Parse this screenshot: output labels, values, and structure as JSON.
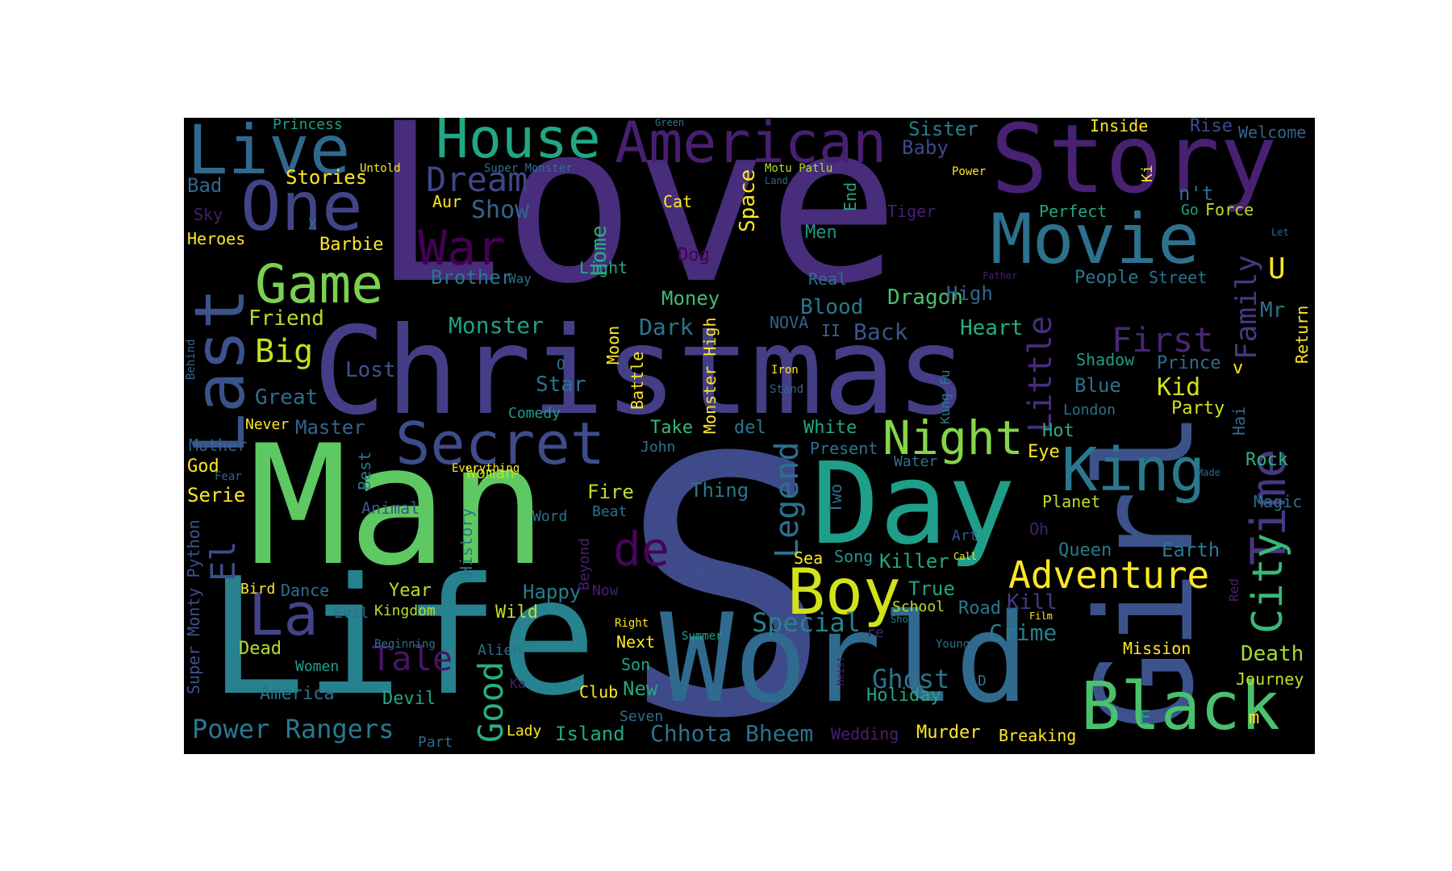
{
  "words": [
    {
      "text": "Love",
      "color": "#472d7b"
    },
    {
      "text": "S",
      "color": "#3e4a89"
    },
    {
      "text": "Man",
      "color": "#5ec962"
    },
    {
      "text": "Life",
      "color": "#26828e"
    },
    {
      "text": "Christmas",
      "color": "#433e85"
    },
    {
      "text": "World",
      "color": "#306a8e"
    },
    {
      "text": "Girl",
      "color": "#3b528b"
    },
    {
      "text": "Day",
      "color": "#1f9e89"
    },
    {
      "text": "Story",
      "color": "#482173"
    },
    {
      "text": "Movie",
      "color": "#2c728e"
    },
    {
      "text": "Black",
      "color": "#4ac16d"
    },
    {
      "text": "Boy",
      "color": "#d2e21b"
    },
    {
      "text": "Live",
      "color": "#31688e"
    },
    {
      "text": "Secret",
      "color": "#3e4c8a"
    },
    {
      "text": "American",
      "color": "#481f70"
    },
    {
      "text": "House",
      "color": "#22a785"
    },
    {
      "text": "One",
      "color": "#414487"
    },
    {
      "text": "Last",
      "color": "#3b528b"
    },
    {
      "text": "Game",
      "color": "#7ad151"
    },
    {
      "text": "Night",
      "color": "#86d549"
    },
    {
      "text": "King",
      "color": "#2a788e"
    },
    {
      "text": "Time",
      "color": "#453882"
    },
    {
      "text": "City",
      "color": "#38b977"
    },
    {
      "text": "Adventure",
      "color": "#fde725"
    },
    {
      "text": "La",
      "color": "#414487"
    },
    {
      "text": "War",
      "color": "#440154"
    },
    {
      "text": "Dream",
      "color": "#3f4788"
    },
    {
      "text": "First",
      "color": "#482677"
    },
    {
      "text": "Little",
      "color": "#472d7b"
    },
    {
      "text": "Family",
      "color": "#443983"
    },
    {
      "text": "de",
      "color": "#450559"
    },
    {
      "text": "Good",
      "color": "#29af7f"
    },
    {
      "text": "Tale",
      "color": "#481467"
    },
    {
      "text": "Legend",
      "color": "#2d708e"
    },
    {
      "text": "El",
      "color": "#3d4e8a"
    },
    {
      "text": "Big",
      "color": "#c2df23"
    },
    {
      "text": "Death",
      "color": "#a5db36"
    },
    {
      "text": "Ghost",
      "color": "#2c728e"
    },
    {
      "text": "Power Rangers",
      "color": "#2a788e"
    },
    {
      "text": "Chhota Bheem",
      "color": "#2c738e"
    },
    {
      "text": "Special",
      "color": "#25848e"
    },
    {
      "text": "Crime",
      "color": "#277f8e"
    },
    {
      "text": "Monster",
      "color": "#1fa088"
    },
    {
      "text": "Dragon",
      "color": "#4ac16d"
    },
    {
      "text": "Kid",
      "color": "#d0e11c"
    },
    {
      "text": "Back",
      "color": "#39558c"
    },
    {
      "text": "Show",
      "color": "#33638d"
    },
    {
      "text": "Dark",
      "color": "#2c738e"
    },
    {
      "text": "Brother",
      "color": "#2a768e"
    },
    {
      "text": "Friend",
      "color": "#b5de2b"
    },
    {
      "text": "Lost",
      "color": "#39568c"
    },
    {
      "text": "Great",
      "color": "#2e6e8e"
    },
    {
      "text": "Heart",
      "color": "#29af7f"
    },
    {
      "text": "Blood",
      "color": "#2a788e"
    },
    {
      "text": "Home",
      "color": "#2ab07f"
    },
    {
      "text": "Space",
      "color": "#fde725"
    },
    {
      "text": "Sister",
      "color": "#287d8e"
    },
    {
      "text": "Baby",
      "color": "#3e4989"
    },
    {
      "text": "Stories",
      "color": "#fde725"
    },
    {
      "text": "Bad",
      "color": "#31688e"
    },
    {
      "text": "Barbie",
      "color": "#fde725"
    },
    {
      "text": "Heroes",
      "color": "#fde725"
    },
    {
      "text": "Princess",
      "color": "#1fa088"
    },
    {
      "text": "Inside",
      "color": "#fde725"
    },
    {
      "text": "Rise",
      "color": "#3e4a89"
    },
    {
      "text": "Welcome",
      "color": "#33638d"
    },
    {
      "text": "Perfect",
      "color": "#22a785"
    },
    {
      "text": "Go",
      "color": "#20a486"
    },
    {
      "text": "Force",
      "color": "#b8de29"
    },
    {
      "text": "n't",
      "color": "#2d708e"
    },
    {
      "text": "U",
      "color": "#fde725"
    },
    {
      "text": "Mr",
      "color": "#2d708e"
    },
    {
      "text": "Return",
      "color": "#fde725"
    },
    {
      "text": "People",
      "color": "#2a788e"
    },
    {
      "text": "Street",
      "color": "#2c728e"
    },
    {
      "text": "High",
      "color": "#31688e"
    },
    {
      "text": "Men",
      "color": "#1f968b"
    },
    {
      "text": "Real",
      "color": "#2c728e"
    },
    {
      "text": "Tiger",
      "color": "#481f70"
    },
    {
      "text": "Dog",
      "color": "#440154"
    },
    {
      "text": "Light",
      "color": "#22a785"
    },
    {
      "text": "Money",
      "color": "#3fbc73"
    },
    {
      "text": "Cat",
      "color": "#fde725"
    },
    {
      "text": "Aur",
      "color": "#fde725"
    },
    {
      "text": "End",
      "color": "#20a486"
    },
    {
      "text": "Ki",
      "color": "#fde725"
    },
    {
      "text": "Shadow",
      "color": "#1f9e89"
    },
    {
      "text": "Prince",
      "color": "#2e6e8e"
    },
    {
      "text": "Blue",
      "color": "#2d708e"
    },
    {
      "text": "Party",
      "color": "#d2e21b"
    },
    {
      "text": "Hai",
      "color": "#31688e"
    },
    {
      "text": "London",
      "color": "#2d708e"
    },
    {
      "text": "Hot",
      "color": "#2ab07f"
    },
    {
      "text": "Eye",
      "color": "#fde725"
    },
    {
      "text": "Rock",
      "color": "#2ab07f"
    },
    {
      "text": "Magic",
      "color": "#2c728e"
    },
    {
      "text": "Planet",
      "color": "#bddf26"
    },
    {
      "text": "Queen",
      "color": "#2a788e"
    },
    {
      "text": "Earth",
      "color": "#2a788e"
    },
    {
      "text": "Oh",
      "color": "#481f70"
    },
    {
      "text": "Art",
      "color": "#3b528b"
    },
    {
      "text": "Killer",
      "color": "#22a785"
    },
    {
      "text": "Song",
      "color": "#1f968b"
    },
    {
      "text": "Sea",
      "color": "#fde725"
    },
    {
      "text": "True",
      "color": "#20a486"
    },
    {
      "text": "Road",
      "color": "#2a788e"
    },
    {
      "text": "Kill",
      "color": "#443983"
    },
    {
      "text": "School",
      "color": "#b5de2b"
    },
    {
      "text": "Mission",
      "color": "#fde725"
    },
    {
      "text": "Journey",
      "color": "#c2df23"
    },
    {
      "text": "Holiday",
      "color": "#22a785"
    },
    {
      "text": "Wedding",
      "color": "#481f70"
    },
    {
      "text": "Murder",
      "color": "#fde725"
    },
    {
      "text": "Breaking",
      "color": "#fde725"
    },
    {
      "text": "Island",
      "color": "#22a785"
    },
    {
      "text": "Seven",
      "color": "#2e6e8e"
    },
    {
      "text": "Club",
      "color": "#fde725"
    },
    {
      "text": "New",
      "color": "#22a785"
    },
    {
      "text": "Son",
      "color": "#20a486"
    },
    {
      "text": "Next",
      "color": "#fde725"
    },
    {
      "text": "Happy",
      "color": "#287d8e"
    },
    {
      "text": "Wild",
      "color": "#bddf26"
    },
    {
      "text": "Year",
      "color": "#b5de2b"
    },
    {
      "text": "Kingdom",
      "color": "#b5de2b"
    },
    {
      "text": "Dance",
      "color": "#2d708e"
    },
    {
      "text": "Bird",
      "color": "#fde725"
    },
    {
      "text": "Evil",
      "color": "#2e6e8e"
    },
    {
      "text": "Dead",
      "color": "#b5de2b"
    },
    {
      "text": "Women",
      "color": "#1f9e89"
    },
    {
      "text": "America",
      "color": "#2d708e"
    },
    {
      "text": "Devil",
      "color": "#20a486"
    },
    {
      "text": "Part",
      "color": "#31688e"
    },
    {
      "text": "Lady",
      "color": "#fde725"
    },
    {
      "text": "Alien",
      "color": "#2e6e8e"
    },
    {
      "text": "Beginning",
      "color": "#2c728e"
    },
    {
      "text": "Fire",
      "color": "#bddf26"
    },
    {
      "text": "Beat",
      "color": "#2e6e8e"
    },
    {
      "text": "Word",
      "color": "#2d708e"
    },
    {
      "text": "Thing",
      "color": "#2a788e"
    },
    {
      "text": "Woman",
      "color": "#b5de2b"
    },
    {
      "text": "Miss",
      "color": "#3b528b"
    },
    {
      "text": "Now",
      "color": "#481f70"
    },
    {
      "text": "Right",
      "color": "#fde725"
    },
    {
      "text": "Summer",
      "color": "#20a486"
    },
    {
      "text": "Animal",
      "color": "#3b528b"
    },
    {
      "text": "Serie",
      "color": "#fde725"
    },
    {
      "text": "God",
      "color": "#fde725"
    },
    {
      "text": "Fear",
      "color": "#33638d"
    },
    {
      "text": "Everything",
      "color": "#fde725"
    },
    {
      "text": "Mother",
      "color": "#33638d"
    },
    {
      "text": "Never",
      "color": "#fde725"
    },
    {
      "text": "Master",
      "color": "#33638d"
    },
    {
      "text": "Take",
      "color": "#38b977"
    },
    {
      "text": "del",
      "color": "#2a788e"
    },
    {
      "text": "John",
      "color": "#2c728e"
    },
    {
      "text": "White",
      "color": "#22a785"
    },
    {
      "text": "Present",
      "color": "#2c728e"
    },
    {
      "text": "Water",
      "color": "#2c728e"
    },
    {
      "text": "Star",
      "color": "#2d708e"
    },
    {
      "text": "Comedy",
      "color": "#1f9e89"
    },
    {
      "text": "O",
      "color": "#2c728e"
    },
    {
      "text": "NOVA",
      "color": "#33638d"
    },
    {
      "text": "II",
      "color": "#33638d"
    },
    {
      "text": "Iron",
      "color": "#fde725"
    },
    {
      "text": "Stand",
      "color": "#33638d"
    },
    {
      "text": "Way",
      "color": "#2c728e"
    },
    {
      "text": "X",
      "color": "#2d708e"
    },
    {
      "text": "Sky",
      "color": "#481f70"
    },
    {
      "text": "Untold",
      "color": "#fde725"
    },
    {
      "text": "Super Monster",
      "color": "#2c728e"
    },
    {
      "text": "Green",
      "color": "#2a788e"
    },
    {
      "text": "Motu Patlu",
      "color": "#b5de2b"
    },
    {
      "text": "Land",
      "color": "#31688e"
    },
    {
      "text": "Power",
      "color": "#fde725"
    },
    {
      "text": "Let",
      "color": "#31688e"
    },
    {
      "text": "Father",
      "color": "#481f70"
    },
    {
      "text": "Film",
      "color": "#fde725"
    },
    {
      "text": "Shot",
      "color": "#2a788e"
    },
    {
      "text": "Young",
      "color": "#2c728e"
    },
    {
      "text": "D",
      "color": "#2c728e"
    },
    {
      "text": "E",
      "color": "#20a486"
    },
    {
      "text": "m",
      "color": "#fde725"
    },
    {
      "text": "Made",
      "color": "#31688e"
    },
    {
      "text": "Call",
      "color": "#fde725"
    },
    {
      "text": "re",
      "color": "#481f70"
    },
    {
      "text": "v",
      "color": "#fde725"
    },
    {
      "text": "Ka",
      "color": "#481f70"
    },
    {
      "text": "Red",
      "color": "#481f70"
    },
    {
      "text": "Behind",
      "color": "#31688e"
    },
    {
      "text": "Super Monty Python",
      "color": "#3b528b"
    },
    {
      "text": "History",
      "color": "#2c728e"
    },
    {
      "text": "Best",
      "color": "#2a788e"
    },
    {
      "text": "Beyond",
      "color": "#481f70"
    },
    {
      "text": "Battle",
      "color": "#fde725"
    },
    {
      "text": "Moon",
      "color": "#fde725"
    },
    {
      "text": "Monster High",
      "color": "#fde725"
    },
    {
      "text": "Two",
      "color": "#2c728e"
    },
    {
      "text": "Kung Fu",
      "color": "#2a788e"
    },
    {
      "text": "Heist",
      "color": "#481f70"
    }
  ]
}
